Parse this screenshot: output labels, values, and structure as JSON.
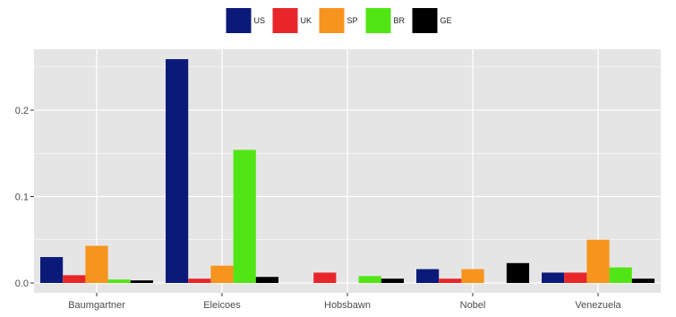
{
  "chart_data": {
    "type": "bar",
    "title": "",
    "xlabel": "",
    "ylabel": "",
    "categories": [
      "Baumgartner",
      "Eleicoes",
      "Hobsbawn",
      "Nobel",
      "Venezuela"
    ],
    "series": [
      {
        "name": "US",
        "color": "#0b1a78",
        "values": [
          0.03,
          0.259,
          0.0,
          0.016,
          0.012
        ]
      },
      {
        "name": "UK",
        "color": "#e8262a",
        "values": [
          0.009,
          0.005,
          0.012,
          0.005,
          0.012
        ]
      },
      {
        "name": "SP",
        "color": "#f7941d",
        "values": [
          0.043,
          0.02,
          0.0,
          0.016,
          0.05
        ]
      },
      {
        "name": "BR",
        "color": "#52e514",
        "values": [
          0.004,
          0.154,
          0.008,
          0.0,
          0.018
        ]
      },
      {
        "name": "GE",
        "color": "#000000",
        "values": [
          0.003,
          0.007,
          0.005,
          0.023,
          0.005
        ]
      }
    ],
    "ylim": [
      0,
      0.27
    ],
    "yticks": [
      0.0,
      0.1,
      0.2
    ],
    "ytick_labels": [
      "0.0",
      "0.1",
      "0.2"
    ],
    "grid": true,
    "legend_position": "top",
    "panel_background": "#e5e5e5",
    "grid_color": "#ffffff"
  }
}
